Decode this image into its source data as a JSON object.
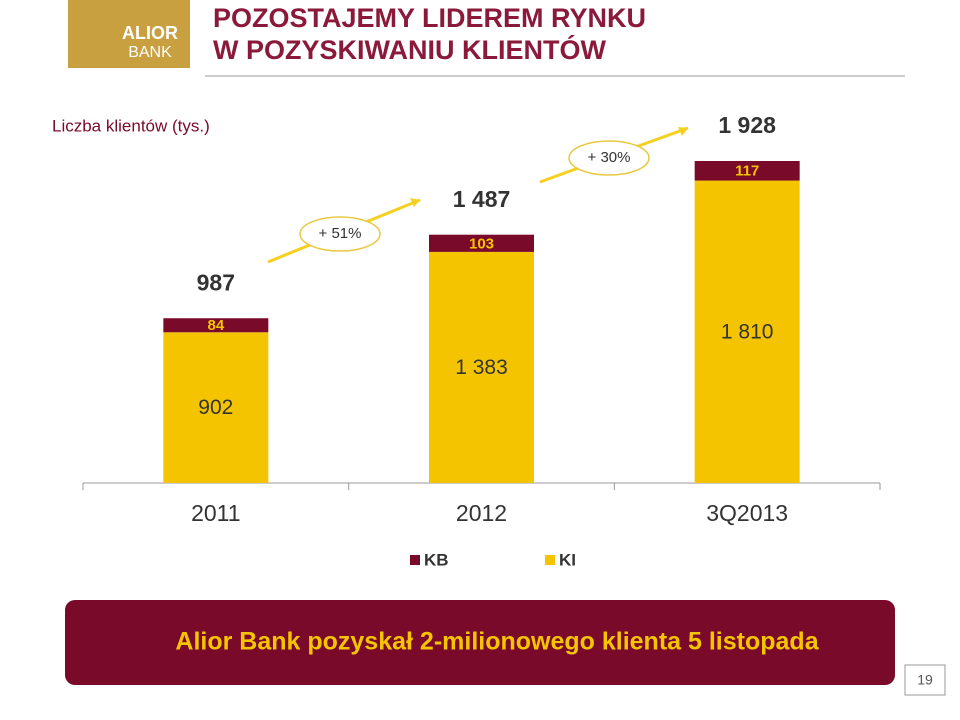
{
  "logo": {
    "line1": "ALIOR",
    "line2": "BANK"
  },
  "header": {
    "title_line1": "POZOSTAJEMY LIDEREM RYNKU",
    "title_line2": "W POZYSKIWANIU KLIENTÓW"
  },
  "chart_data": {
    "type": "stacked-bar",
    "subtitle": "Liczba klientów (tys.)",
    "categories": [
      "2011",
      "2012",
      "3Q2013"
    ],
    "series": [
      {
        "name": "KI",
        "color": "#f5c400",
        "values": [
          902,
          1383,
          1810
        ],
        "value_labels": [
          "902",
          "1 383",
          "1 810"
        ]
      },
      {
        "name": "KB",
        "color": "#7a0a2a",
        "values": [
          84,
          103,
          117
        ]
      }
    ],
    "totals": {
      "values": [
        987,
        1487,
        1928
      ],
      "value_labels": [
        "987",
        "1 487",
        "1 928"
      ]
    },
    "annotations": [
      "+ 51%",
      "+ 30%"
    ]
  },
  "banner": "Alior Bank pozyskał  2-milionowego klienta 5 listopada",
  "page_number": 19
}
